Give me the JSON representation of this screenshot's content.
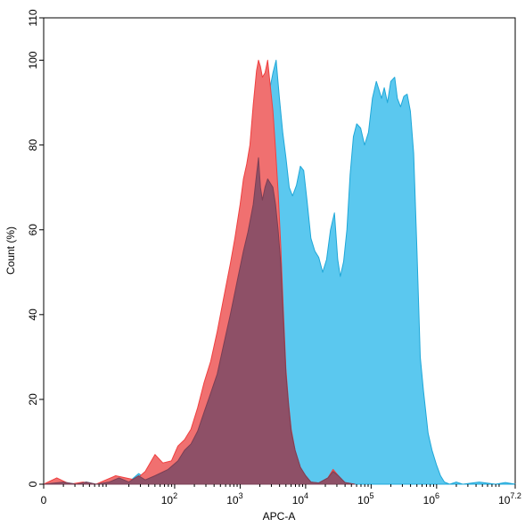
{
  "chart_data": {
    "type": "area",
    "xlabel": "APC-A",
    "ylabel": "Count (%)",
    "xscale": "log",
    "xlim": [
      0,
      7.2
    ],
    "ylim": [
      0,
      110
    ],
    "grid": false,
    "x_ticks": [
      {
        "base": "0",
        "exp": ""
      },
      {
        "base": "10",
        "exp": "2"
      },
      {
        "base": "10",
        "exp": "3"
      },
      {
        "base": "10",
        "exp": "4"
      },
      {
        "base": "10",
        "exp": "5"
      },
      {
        "base": "10",
        "exp": "6"
      },
      {
        "base": "10",
        "exp": "7.2"
      }
    ],
    "y_ticks": [
      "0",
      "20",
      "40",
      "60",
      "80",
      "100",
      "110"
    ],
    "series": [
      {
        "color": "#5bc8ef",
        "stroke": "#1fa7d8",
        "points": [
          [
            0.0,
            0.0
          ],
          [
            0.3,
            0.5
          ],
          [
            0.5,
            0.0
          ],
          [
            0.65,
            0.5
          ],
          [
            0.8,
            0.0
          ],
          [
            1.0,
            0.5
          ],
          [
            1.15,
            1.5
          ],
          [
            1.3,
            0.5
          ],
          [
            1.45,
            2.5
          ],
          [
            1.6,
            1.0
          ],
          [
            1.75,
            2.0
          ],
          [
            1.9,
            3.5
          ],
          [
            2.05,
            5.5
          ],
          [
            2.15,
            8.0
          ],
          [
            2.25,
            9.5
          ],
          [
            2.35,
            12.5
          ],
          [
            2.45,
            17.0
          ],
          [
            2.55,
            21.5
          ],
          [
            2.65,
            26.0
          ],
          [
            2.75,
            33.0
          ],
          [
            2.85,
            40.0
          ],
          [
            2.95,
            47.5
          ],
          [
            3.05,
            55.0
          ],
          [
            3.12,
            59.5
          ],
          [
            3.2,
            66.0
          ],
          [
            3.25,
            73.0
          ],
          [
            3.3,
            82.0
          ],
          [
            3.33,
            88.0
          ],
          [
            3.36,
            91.0
          ],
          [
            3.4,
            92.0
          ],
          [
            3.45,
            93.0
          ],
          [
            3.5,
            97.0
          ],
          [
            3.55,
            100.0
          ],
          [
            3.6,
            91.0
          ],
          [
            3.65,
            83.0
          ],
          [
            3.7,
            77.0
          ],
          [
            3.75,
            70.0
          ],
          [
            3.8,
            68.0
          ],
          [
            3.86,
            70.5
          ],
          [
            3.92,
            75.0
          ],
          [
            3.97,
            74.0
          ],
          [
            4.02,
            67.0
          ],
          [
            4.08,
            58.0
          ],
          [
            4.14,
            55.0
          ],
          [
            4.2,
            53.5
          ],
          [
            4.26,
            50.0
          ],
          [
            4.32,
            53.0
          ],
          [
            4.38,
            60.0
          ],
          [
            4.44,
            64.0
          ],
          [
            4.49,
            53.0
          ],
          [
            4.53,
            49.0
          ],
          [
            4.58,
            52.5
          ],
          [
            4.63,
            60.0
          ],
          [
            4.68,
            73.0
          ],
          [
            4.73,
            82.0
          ],
          [
            4.78,
            85.0
          ],
          [
            4.84,
            84.0
          ],
          [
            4.9,
            80.0
          ],
          [
            4.96,
            83.0
          ],
          [
            5.02,
            91.0
          ],
          [
            5.08,
            95.0
          ],
          [
            5.12,
            93.0
          ],
          [
            5.16,
            91.0
          ],
          [
            5.2,
            93.5
          ],
          [
            5.25,
            90.0
          ],
          [
            5.3,
            95.0
          ],
          [
            5.36,
            96.0
          ],
          [
            5.4,
            91.0
          ],
          [
            5.45,
            89.0
          ],
          [
            5.5,
            91.5
          ],
          [
            5.55,
            92.0
          ],
          [
            5.6,
            88.0
          ],
          [
            5.65,
            78.0
          ],
          [
            5.7,
            55.0
          ],
          [
            5.75,
            30.0
          ],
          [
            5.8,
            22.0
          ],
          [
            5.87,
            12.0
          ],
          [
            5.93,
            8.0
          ],
          [
            6.0,
            4.5
          ],
          [
            6.06,
            2.0
          ],
          [
            6.12,
            0.5
          ],
          [
            6.2,
            0.0
          ],
          [
            6.3,
            0.5
          ],
          [
            6.4,
            0.0
          ],
          [
            6.65,
            0.5
          ],
          [
            6.9,
            0.0
          ],
          [
            7.05,
            0.4
          ],
          [
            7.2,
            0.0
          ]
        ]
      },
      {
        "color": "#f07070",
        "stroke": "#f04040",
        "points": [
          [
            0.0,
            0.0
          ],
          [
            0.2,
            1.5
          ],
          [
            0.4,
            0.0
          ],
          [
            0.6,
            0.5
          ],
          [
            0.8,
            0.0
          ],
          [
            0.95,
            1.0
          ],
          [
            1.1,
            2.0
          ],
          [
            1.25,
            1.5
          ],
          [
            1.4,
            1.0
          ],
          [
            1.55,
            3.0
          ],
          [
            1.7,
            7.0
          ],
          [
            1.82,
            5.0
          ],
          [
            1.95,
            5.5
          ],
          [
            2.05,
            9.0
          ],
          [
            2.15,
            10.5
          ],
          [
            2.25,
            13.0
          ],
          [
            2.35,
            18.0
          ],
          [
            2.45,
            24.0
          ],
          [
            2.55,
            29.0
          ],
          [
            2.65,
            36.0
          ],
          [
            2.75,
            44.0
          ],
          [
            2.85,
            52.0
          ],
          [
            2.92,
            58.0
          ],
          [
            3.0,
            66.0
          ],
          [
            3.05,
            72.0
          ],
          [
            3.1,
            75.5
          ],
          [
            3.15,
            80.0
          ],
          [
            3.2,
            89.5
          ],
          [
            3.25,
            97.5
          ],
          [
            3.28,
            100.0
          ],
          [
            3.31,
            98.5
          ],
          [
            3.34,
            96.0
          ],
          [
            3.38,
            97.0
          ],
          [
            3.42,
            100.0
          ],
          [
            3.46,
            94.0
          ],
          [
            3.5,
            88.0
          ],
          [
            3.54,
            79.0
          ],
          [
            3.58,
            69.0
          ],
          [
            3.62,
            56.0
          ],
          [
            3.66,
            41.0
          ],
          [
            3.7,
            27.0
          ],
          [
            3.74,
            19.0
          ],
          [
            3.78,
            13.0
          ],
          [
            3.84,
            8.0
          ],
          [
            3.92,
            4.0
          ],
          [
            4.0,
            2.0
          ],
          [
            4.08,
            0.5
          ],
          [
            4.2,
            0.3
          ],
          [
            4.34,
            1.5
          ],
          [
            4.42,
            3.5
          ],
          [
            4.5,
            2.0
          ],
          [
            4.6,
            0.4
          ],
          [
            4.75,
            0.0
          ]
        ]
      },
      {
        "color": "#8e5067",
        "stroke": "#7a3f55",
        "points": [
          [
            0.0,
            0.0
          ],
          [
            0.3,
            0.5
          ],
          [
            0.5,
            0.0
          ],
          [
            0.65,
            0.5
          ],
          [
            0.8,
            0.0
          ],
          [
            1.0,
            0.5
          ],
          [
            1.15,
            1.5
          ],
          [
            1.3,
            0.5
          ],
          [
            1.45,
            2.0
          ],
          [
            1.55,
            1.0
          ],
          [
            1.7,
            2.0
          ],
          [
            1.9,
            3.5
          ],
          [
            2.05,
            5.5
          ],
          [
            2.15,
            8.0
          ],
          [
            2.25,
            9.5
          ],
          [
            2.35,
            12.5
          ],
          [
            2.45,
            17.0
          ],
          [
            2.55,
            21.5
          ],
          [
            2.65,
            26.0
          ],
          [
            2.75,
            33.0
          ],
          [
            2.85,
            40.0
          ],
          [
            2.95,
            47.5
          ],
          [
            3.05,
            55.0
          ],
          [
            3.12,
            59.5
          ],
          [
            3.2,
            66.0
          ],
          [
            3.25,
            73.0
          ],
          [
            3.28,
            77.0
          ],
          [
            3.31,
            70.0
          ],
          [
            3.34,
            67.0
          ],
          [
            3.38,
            70.0
          ],
          [
            3.42,
            72.0
          ],
          [
            3.46,
            71.0
          ],
          [
            3.5,
            70.0
          ],
          [
            3.54,
            66.0
          ],
          [
            3.58,
            60.0
          ],
          [
            3.62,
            52.0
          ],
          [
            3.66,
            39.0
          ],
          [
            3.7,
            26.0
          ],
          [
            3.74,
            18.5
          ],
          [
            3.78,
            12.5
          ],
          [
            3.84,
            8.0
          ],
          [
            3.92,
            4.0
          ],
          [
            4.0,
            2.0
          ],
          [
            4.08,
            0.5
          ],
          [
            4.2,
            0.3
          ],
          [
            4.34,
            1.5
          ],
          [
            4.42,
            3.0
          ],
          [
            4.5,
            2.0
          ],
          [
            4.6,
            0.4
          ],
          [
            4.75,
            0.0
          ]
        ]
      }
    ]
  }
}
